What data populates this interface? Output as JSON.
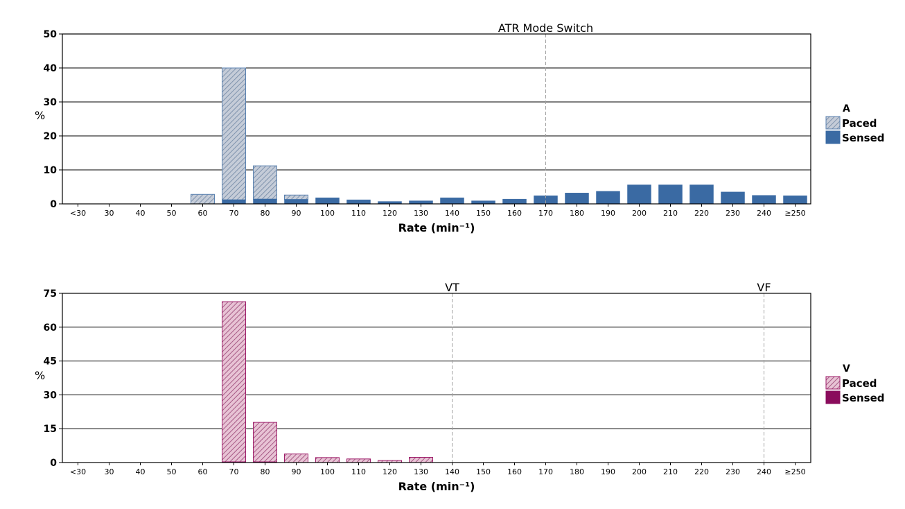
{
  "colors": {
    "a_paced_fill": "#c5ccd8",
    "a_paced_hatch": "#7f93ad",
    "a_paced_stroke": "#5b82b0",
    "a_sensed": "#3a6aa3",
    "v_paced_fill": "#e8c3d5",
    "v_paced_hatch": "#a65a85",
    "v_paced_stroke": "#9e1d6a",
    "v_sensed": "#8a0c5c",
    "gridline": "#000000",
    "marker_line": "#a0a0a0"
  },
  "chart_data": [
    {
      "type": "bar",
      "stacked": true,
      "title": "",
      "categories": [
        "<30",
        "30",
        "40",
        "50",
        "60",
        "70",
        "80",
        "90",
        "100",
        "110",
        "120",
        "130",
        "140",
        "150",
        "160",
        "170",
        "180",
        "190",
        "200",
        "210",
        "220",
        "230",
        "240",
        "≥250"
      ],
      "xlabel": "Rate (min⁻¹)",
      "ylabel": "%",
      "ylim": [
        0,
        50
      ],
      "yticks": [
        "0",
        "10",
        "20",
        "30",
        "40",
        "50"
      ],
      "grid": true,
      "legend_title": "A",
      "legend_position": "right",
      "series": [
        {
          "name": "Sensed",
          "style": "solid",
          "values": [
            0,
            0,
            0,
            0,
            0,
            1.2,
            1.4,
            1.3,
            1.8,
            1.2,
            0.7,
            0.9,
            1.8,
            0.9,
            1.4,
            2.4,
            3.2,
            3.7,
            5.6,
            5.6,
            5.6,
            3.5,
            2.5,
            2.4
          ]
        },
        {
          "name": "Paced",
          "style": "hatched",
          "values": [
            0,
            0,
            0,
            0,
            2.8,
            38.8,
            9.8,
            1.3,
            0,
            0,
            0,
            0,
            0,
            0,
            0,
            0,
            0,
            0,
            0,
            0,
            0,
            0,
            0,
            0
          ]
        }
      ],
      "markers": [
        {
          "label": "ATR Mode Switch",
          "category": "170"
        }
      ]
    },
    {
      "type": "bar",
      "stacked": true,
      "title": "",
      "categories": [
        "<30",
        "30",
        "40",
        "50",
        "60",
        "70",
        "80",
        "90",
        "100",
        "110",
        "120",
        "130",
        "140",
        "150",
        "160",
        "170",
        "180",
        "190",
        "200",
        "210",
        "220",
        "230",
        "240",
        "≥250"
      ],
      "xlabel": "Rate (min⁻¹)",
      "ylabel": "%",
      "ylim": [
        0,
        75
      ],
      "yticks": [
        "0",
        "15",
        "30",
        "45",
        "60",
        "75"
      ],
      "grid": true,
      "legend_title": "V",
      "legend_position": "right",
      "series": [
        {
          "name": "Sensed",
          "style": "solid",
          "values": [
            0,
            0,
            0,
            0,
            0,
            0.3,
            0.3,
            0,
            0,
            0,
            0,
            0,
            0,
            0,
            0,
            0,
            0,
            0,
            0,
            0,
            0,
            0,
            0,
            0
          ]
        },
        {
          "name": "Paced",
          "style": "hatched",
          "values": [
            0,
            0,
            0,
            0,
            0,
            71.0,
            17.5,
            3.8,
            2.2,
            1.6,
            0.9,
            2.3,
            0,
            0,
            0,
            0,
            0,
            0,
            0,
            0,
            0,
            0,
            0,
            0
          ]
        }
      ],
      "markers": [
        {
          "label": "VT",
          "category": "140"
        },
        {
          "label": "VF",
          "category": "240"
        }
      ]
    }
  ]
}
